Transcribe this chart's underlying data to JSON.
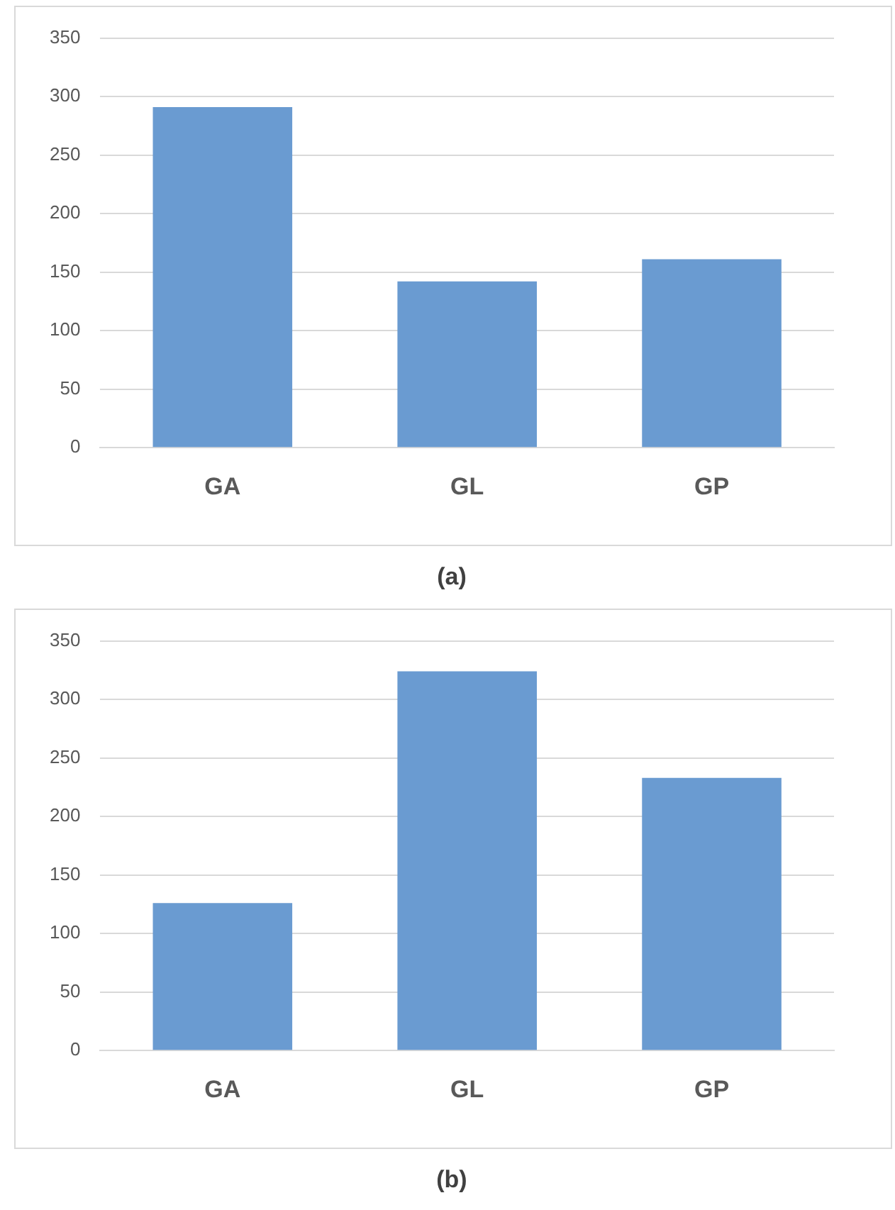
{
  "chart_data": [
    {
      "type": "bar",
      "title": "(a)",
      "categories": [
        "GA",
        "GL",
        "GP"
      ],
      "values": [
        291,
        142,
        161
      ],
      "color": "#6a9bd1",
      "ylim": [
        0,
        350
      ],
      "yticks": [
        0,
        50,
        100,
        150,
        200,
        250,
        300,
        350
      ],
      "grid": "y",
      "legend": false
    },
    {
      "type": "bar",
      "title": "(b)",
      "categories": [
        "GA",
        "GL",
        "GP"
      ],
      "values": [
        126,
        324,
        233
      ],
      "color": "#6a9bd1",
      "ylim": [
        0,
        350
      ],
      "yticks": [
        0,
        50,
        100,
        150,
        200,
        250,
        300,
        350
      ],
      "grid": "y",
      "legend": false
    }
  ]
}
